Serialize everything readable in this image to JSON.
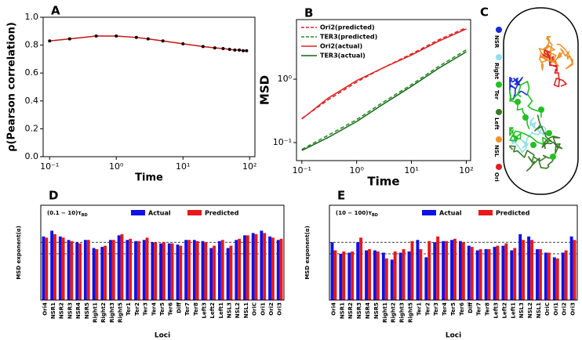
{
  "chart_data": [
    {
      "type": "line",
      "panel_label": "A",
      "xlabel": "Time",
      "ylabel": "ρ(Pearson correlation)",
      "xlog": true,
      "xlim": [
        0.08,
        120
      ],
      "xticks": [
        {
          "value": 0.1,
          "label": "10⁻¹"
        },
        {
          "value": 1,
          "label": "10⁰"
        },
        {
          "value": 10,
          "label": "10¹"
        },
        {
          "value": 100,
          "label": "10²"
        }
      ],
      "ylim": [
        0,
        1.0
      ],
      "yticks": [
        {
          "value": 0,
          "label": "0.0"
        },
        0.2,
        0.4,
        0.6,
        0.8,
        {
          "value": 1,
          "label": "1.0"
        }
      ],
      "x": [
        0.1,
        0.2,
        0.5,
        1,
        2,
        3,
        5,
        10,
        20,
        30,
        40,
        50,
        60,
        70,
        80,
        90
      ],
      "series": [
        {
          "color": "#cc1111",
          "marker_color": "#000000",
          "values": [
            0.83,
            0.845,
            0.865,
            0.865,
            0.855,
            0.845,
            0.83,
            0.81,
            0.79,
            0.78,
            0.775,
            0.77,
            0.765,
            0.765,
            0.76,
            0.76
          ]
        }
      ]
    },
    {
      "type": "line",
      "panel_label": "B",
      "xlabel": "Time",
      "ylabel": "MSD",
      "legend": "upper left",
      "xlog": true,
      "ylog": true,
      "xlim": [
        0.08,
        120
      ],
      "xticks": [
        {
          "value": 0.1,
          "label": "10⁻¹"
        },
        {
          "value": 1,
          "label": "10⁰"
        },
        {
          "value": 10,
          "label": "10¹"
        },
        {
          "value": 100,
          "label": "10²"
        }
      ],
      "ylim": [
        0.052,
        8.7
      ],
      "yticks": [
        {
          "value": 0.1,
          "label": "10⁻¹"
        },
        {
          "value": 1,
          "label": "10⁰"
        }
      ],
      "x": [
        0.1,
        0.3,
        1,
        3,
        10,
        30,
        100
      ],
      "series": [
        {
          "name": "Ori2(predicted)",
          "color": "#dd2222",
          "dash": true,
          "values": [
            0.24,
            0.47,
            0.9,
            1.5,
            2.5,
            4.1,
            6.5
          ]
        },
        {
          "name": "TER3(predicted)",
          "color": "#228822",
          "dash": true,
          "values": [
            0.078,
            0.13,
            0.23,
            0.43,
            0.82,
            1.55,
            2.9
          ]
        },
        {
          "name": "Ori2(actual)",
          "color": "#dd2222",
          "values": [
            0.235,
            0.5,
            0.95,
            1.5,
            2.4,
            3.9,
            6.2
          ]
        },
        {
          "name": "TER3(actual)",
          "color": "#116611",
          "values": [
            0.075,
            0.12,
            0.215,
            0.4,
            0.77,
            1.45,
            2.7
          ]
        }
      ]
    },
    {
      "type": "bar",
      "panel_label": "D",
      "xlabel": "Loci",
      "ylabel": "MSD exponent(α)",
      "legend": "upper center",
      "annotation": "(0.1 − 10)τ",
      "annotation_sub": "BD",
      "ylim": [
        0,
        0.82
      ],
      "reference_lines": [
        0.5,
        0.4
      ],
      "categories": [
        "Ori4",
        "NSR1",
        "NSR2",
        "NSR3",
        "NSR4",
        "NSR5",
        "Right1",
        "Right2",
        "Right3",
        "Right5",
        "Ter1",
        "Ter2",
        "Ter3",
        "Ter4",
        "Ter5",
        "Ter6",
        "Diff",
        "Ter7",
        "Ter8",
        "Left3",
        "Left2",
        "Left1",
        "NSL3",
        "NSL2",
        "NSL1",
        "OriC",
        "Ori1",
        "Ori2",
        "Ori3"
      ],
      "series": [
        {
          "name": "Actual",
          "color": "#1010e8",
          "values": [
            0.55,
            0.6,
            0.55,
            0.52,
            0.5,
            0.52,
            0.45,
            0.46,
            0.52,
            0.56,
            0.52,
            0.51,
            0.52,
            0.5,
            0.49,
            0.49,
            0.48,
            0.52,
            0.52,
            0.51,
            0.45,
            0.51,
            0.45,
            0.52,
            0.56,
            0.58,
            0.6,
            0.55,
            0.52
          ]
        },
        {
          "name": "Predicted",
          "color": "#e81818",
          "values": [
            0.54,
            0.57,
            0.54,
            0.51,
            0.49,
            0.52,
            0.44,
            0.47,
            0.52,
            0.57,
            0.53,
            0.51,
            0.54,
            0.5,
            0.5,
            0.49,
            0.47,
            0.52,
            0.51,
            0.5,
            0.47,
            0.52,
            0.47,
            0.53,
            0.56,
            0.57,
            0.58,
            0.54,
            0.53
          ]
        }
      ]
    },
    {
      "type": "bar",
      "panel_label": "E",
      "xlabel": "Loci",
      "ylabel": "MSD exponent(α)",
      "legend": "upper center",
      "annotation": "(10 − 100)τ",
      "annotation_sub": "BD",
      "ylim": [
        0,
        0.82
      ],
      "reference_lines": [
        0.5,
        0.4
      ],
      "categories": [
        "Ori4",
        "NSR1",
        "NSR2",
        "NSR3",
        "NSR4",
        "NSR5",
        "Right1",
        "Right2",
        "Right3",
        "Right5",
        "Ter1",
        "Ter2",
        "Ter3",
        "Ter4",
        "Ter5",
        "Ter6",
        "Diff",
        "Ter7",
        "Ter8",
        "Left3",
        "Left2",
        "Left1",
        "NSL3",
        "NSL2",
        "NSL1",
        "OriC",
        "Ori1",
        "Ori2",
        "Ori3"
      ],
      "series": [
        {
          "name": "Actual",
          "color": "#1010e8",
          "values": [
            0.5,
            0.4,
            0.41,
            0.5,
            0.43,
            0.43,
            0.41,
            0.35,
            0.41,
            0.42,
            0.52,
            0.37,
            0.5,
            0.51,
            0.52,
            0.51,
            0.47,
            0.43,
            0.44,
            0.46,
            0.47,
            0.43,
            0.57,
            0.55,
            0.44,
            0.41,
            0.37,
            0.41,
            0.55
          ]
        },
        {
          "name": "Predicted",
          "color": "#e81818",
          "values": [
            0.43,
            0.42,
            0.42,
            0.54,
            0.44,
            0.42,
            0.36,
            0.42,
            0.44,
            0.51,
            0.44,
            0.51,
            0.55,
            0.51,
            0.53,
            0.5,
            0.46,
            0.44,
            0.44,
            0.47,
            0.49,
            0.45,
            0.52,
            0.52,
            0.44,
            0.41,
            0.36,
            0.43,
            0.52
          ]
        }
      ]
    }
  ],
  "panel_c": {
    "panel_label": "C",
    "legend": [
      "NSR",
      "Right",
      "Ter",
      "Left",
      "NSL",
      "Ori"
    ],
    "colors": [
      "#1a2ad8",
      "#8fe0ea",
      "#22c022",
      "#3a7a2a",
      "#f0902a",
      "#e02020"
    ]
  }
}
